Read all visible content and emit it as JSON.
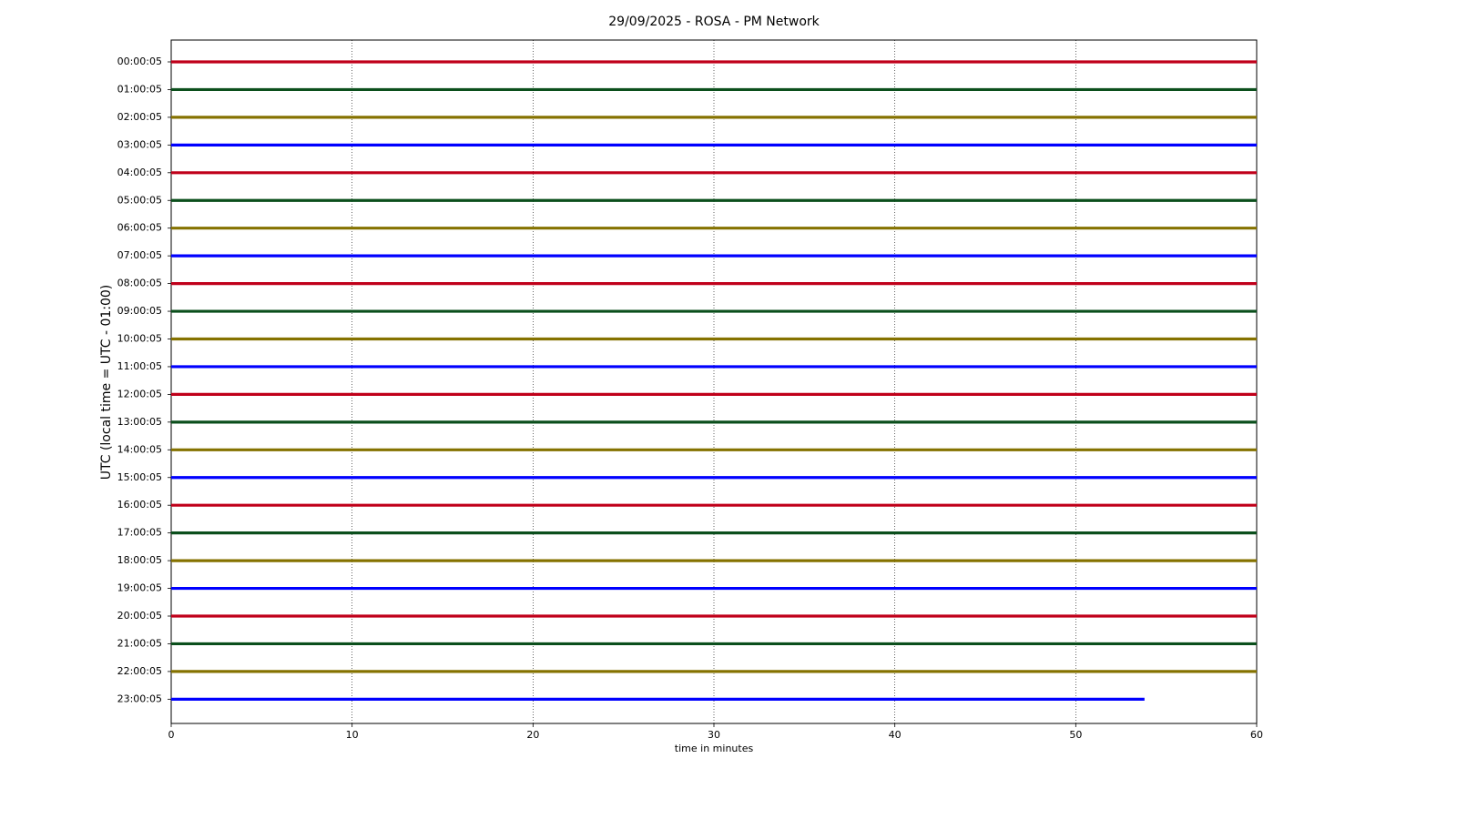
{
  "chart_data": {
    "type": "helicorder",
    "title": "29/09/2025 - ROSA - PM Network",
    "x_label": "time in minutes",
    "y_label": "UTC (local time = UTC - 01:00)",
    "categories": [
      "00:00:05",
      "01:00:05",
      "02:00:05",
      "03:00:05",
      "04:00:05",
      "05:00:05",
      "06:00:05",
      "07:00:05",
      "08:00:05",
      "09:00:05",
      "10:00:05",
      "11:00:05",
      "12:00:05",
      "13:00:05",
      "14:00:05",
      "15:00:05",
      "16:00:05",
      "17:00:05",
      "18:00:05",
      "19:00:05",
      "20:00:05",
      "21:00:05",
      "22:00:05",
      "23:00:05"
    ],
    "trace_start": [
      0,
      0,
      0,
      0,
      0,
      0,
      0,
      0,
      0,
      0,
      0,
      0,
      0,
      0,
      0,
      0,
      0,
      0,
      0,
      0,
      0,
      0,
      0,
      0
    ],
    "trace_end": [
      60,
      60,
      60,
      60,
      60,
      60,
      60,
      60,
      60,
      60,
      60,
      60,
      60,
      60,
      60,
      60,
      60,
      60,
      60,
      60,
      60,
      60,
      60,
      53.8
    ],
    "colors": [
      "#c0001a",
      "#0b4f1c",
      "#857200",
      "#0000ff"
    ],
    "xlim": [
      0,
      60
    ],
    "xticks": [
      0,
      10,
      20,
      30,
      40,
      50,
      60
    ],
    "grid": true
  }
}
